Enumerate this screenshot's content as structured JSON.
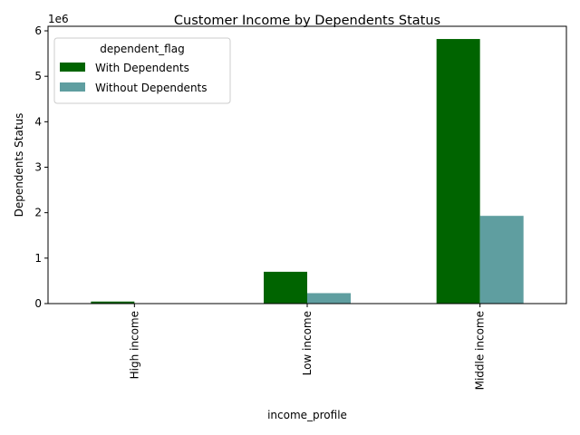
{
  "chart_data": {
    "type": "bar",
    "title": "Customer Income by Dependents Status",
    "xlabel": "income_profile",
    "ylabel": "Dependents Status",
    "y_offset_label": "1e6",
    "y_scale": 1000000,
    "categories": [
      "High income",
      "Low income",
      "Middle income"
    ],
    "series": [
      {
        "name": "With Dependents",
        "color": "#006400",
        "values": [
          45000,
          700000,
          5820000
        ]
      },
      {
        "name": "Without Dependents",
        "color": "#5f9ea0",
        "values": [
          6000,
          230000,
          1930000
        ]
      }
    ],
    "ylim": [
      0,
      6100000
    ],
    "yticks": [
      0,
      1000000,
      2000000,
      3000000,
      4000000,
      5000000,
      6000000
    ],
    "ytick_labels": [
      "0",
      "1",
      "2",
      "3",
      "4",
      "5",
      "6"
    ],
    "grid": false,
    "legend": {
      "title": "dependent_flag",
      "placement": "top-left"
    }
  }
}
